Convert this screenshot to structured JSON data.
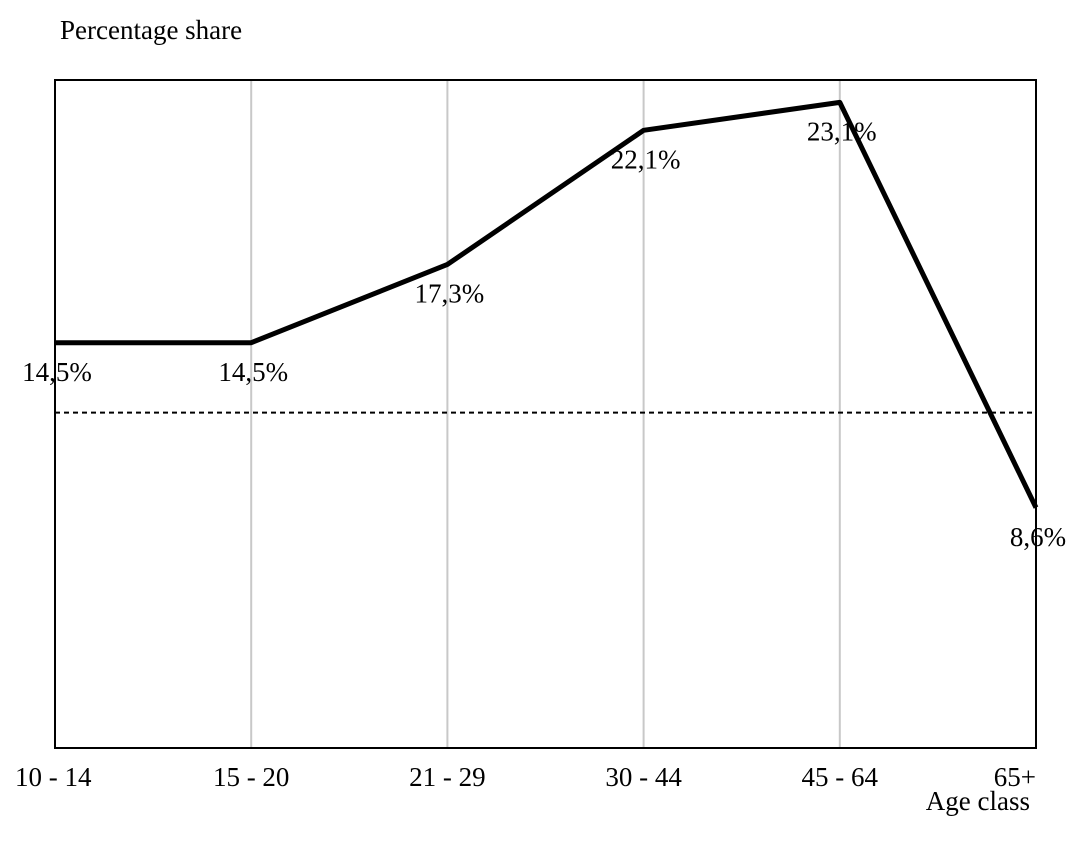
{
  "chart_data": {
    "type": "line",
    "y_label": "Percentage share",
    "x_label": "Age class",
    "categories": [
      "10 - 14",
      "15 - 20",
      "21 - 29",
      "30 - 44",
      "45 - 64",
      "65+"
    ],
    "values": [
      14.5,
      14.5,
      17.3,
      22.1,
      23.1,
      8.6
    ],
    "value_labels": [
      "14,5%",
      "14,5%",
      "17,3%",
      "22,1%",
      "23,1%",
      "8,6%"
    ],
    "color": "#000000",
    "ylim": [
      0,
      23.9
    ],
    "reference_line": 12,
    "grid": true
  }
}
